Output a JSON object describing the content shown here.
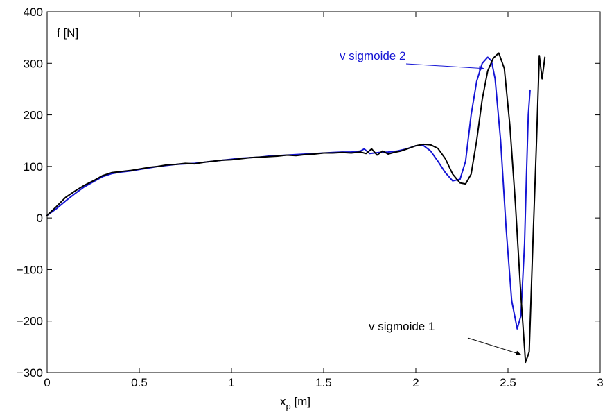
{
  "chart_data": {
    "type": "line",
    "title": "",
    "xlabel": "x",
    "xlabel_subscript": "p",
    "xlabel_unit": " [m]",
    "ylabel": "f [N]",
    "xlim": [
      0,
      3
    ],
    "ylim": [
      -300,
      400
    ],
    "x_ticks": [
      0,
      0.5,
      1,
      1.5,
      2,
      2.5,
      3
    ],
    "x_tick_labels": [
      "0",
      "0.5",
      "1",
      "1.5",
      "2",
      "2.5",
      "3"
    ],
    "y_ticks": [
      -300,
      -200,
      -100,
      0,
      100,
      200,
      300,
      400
    ],
    "y_tick_labels": [
      "−300",
      "−200",
      "−100",
      "0",
      "100",
      "200",
      "300",
      "400"
    ],
    "grid": false,
    "series": [
      {
        "name": "v sigmoide 1",
        "color": "#000000",
        "x": [
          0,
          0.05,
          0.1,
          0.15,
          0.2,
          0.25,
          0.3,
          0.35,
          0.4,
          0.45,
          0.5,
          0.55,
          0.6,
          0.65,
          0.7,
          0.75,
          0.8,
          0.85,
          0.9,
          0.95,
          1.0,
          1.05,
          1.1,
          1.15,
          1.2,
          1.25,
          1.3,
          1.35,
          1.4,
          1.45,
          1.5,
          1.55,
          1.6,
          1.65,
          1.7,
          1.73,
          1.76,
          1.79,
          1.82,
          1.85,
          1.88,
          1.92,
          1.96,
          2.0,
          2.04,
          2.08,
          2.12,
          2.16,
          2.2,
          2.24,
          2.27,
          2.3,
          2.33,
          2.36,
          2.39,
          2.42,
          2.45,
          2.48,
          2.51,
          2.54,
          2.57,
          2.595,
          2.615,
          2.635,
          2.655,
          2.67,
          2.685,
          2.7
        ],
        "y": [
          5,
          22,
          40,
          52,
          63,
          72,
          82,
          88,
          90,
          92,
          95,
          98,
          100,
          103,
          104,
          106,
          105,
          108,
          110,
          112,
          113,
          115,
          117,
          118,
          119,
          120,
          122,
          121,
          123,
          124,
          126,
          126,
          127,
          126,
          128,
          125,
          134,
          122,
          130,
          124,
          127,
          130,
          135,
          140,
          143,
          142,
          135,
          115,
          85,
          68,
          66,
          85,
          150,
          230,
          285,
          310,
          320,
          290,
          180,
          30,
          -150,
          -280,
          -260,
          -50,
          150,
          315,
          270,
          312
        ]
      },
      {
        "name": "v sigmoide 2",
        "color": "#1414d4",
        "x": [
          0,
          0.05,
          0.1,
          0.15,
          0.2,
          0.25,
          0.3,
          0.35,
          0.4,
          0.45,
          0.5,
          0.55,
          0.6,
          0.65,
          0.7,
          0.75,
          0.8,
          0.85,
          0.9,
          0.95,
          1.0,
          1.05,
          1.1,
          1.15,
          1.2,
          1.25,
          1.3,
          1.35,
          1.4,
          1.45,
          1.5,
          1.55,
          1.6,
          1.65,
          1.7,
          1.72,
          1.75,
          1.8,
          1.85,
          1.9,
          1.95,
          2.0,
          2.04,
          2.08,
          2.12,
          2.16,
          2.2,
          2.24,
          2.27,
          2.3,
          2.33,
          2.36,
          2.39,
          2.41,
          2.43,
          2.46,
          2.49,
          2.52,
          2.55,
          2.57,
          2.59,
          2.6,
          2.61,
          2.62
        ],
        "y": [
          5,
          18,
          33,
          47,
          60,
          70,
          80,
          86,
          89,
          91,
          94,
          97,
          100,
          102,
          104,
          105,
          106,
          108,
          110,
          112,
          114,
          116,
          117,
          118,
          120,
          121,
          122,
          123,
          124,
          125,
          126,
          127,
          128,
          128,
          130,
          134,
          125,
          127,
          128,
          130,
          134,
          140,
          141,
          130,
          110,
          88,
          72,
          75,
          110,
          200,
          265,
          300,
          312,
          305,
          270,
          150,
          -20,
          -160,
          -215,
          -190,
          -50,
          80,
          200,
          248
        ]
      }
    ],
    "annotations": [
      {
        "text": "v sigmoide 2",
        "color": "#1414d4",
        "target_series": "v sigmoide 2",
        "target_x": 2.37,
        "target_y": 290
      },
      {
        "text": "v sigmoide 1",
        "color": "#000000",
        "target_series": "v sigmoide 1",
        "target_x": 2.57,
        "target_y": -265
      }
    ]
  }
}
